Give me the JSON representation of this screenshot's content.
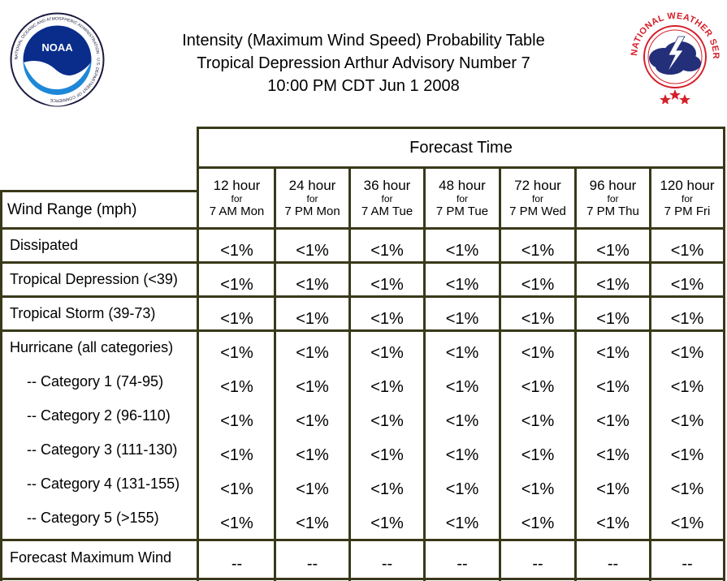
{
  "header": {
    "title_line1": "Intensity (Maximum Wind Speed) Probability Table",
    "title_line2": "Tropical Depression Arthur Advisory Number 7",
    "title_line3": "10:00 PM CDT Jun 1 2008"
  },
  "logos": {
    "noaa_text": "NOAA",
    "noaa_ring_text": "NATIONAL OCEANIC AND ATMOSPHERIC ADMINISTRATION · U.S. DEPARTMENT OF COMMERCE",
    "nws_ring_text": "NATIONAL WEATHER SERVICE"
  },
  "table": {
    "forecast_time_label": "Forecast Time",
    "wind_range_label": "Wind Range (mph)",
    "columns": [
      {
        "hours": "12 hour",
        "for": "for",
        "when": "7 AM Mon"
      },
      {
        "hours": "24 hour",
        "for": "for",
        "when": "7 PM Mon"
      },
      {
        "hours": "36 hour",
        "for": "for",
        "when": "7 AM Tue"
      },
      {
        "hours": "48 hour",
        "for": "for",
        "when": "7 PM Tue"
      },
      {
        "hours": "72 hour",
        "for": "for",
        "when": "7 PM Wed"
      },
      {
        "hours": "96 hour",
        "for": "for",
        "when": "7 PM Thu"
      },
      {
        "hours": "120 hour",
        "for": "for",
        "when": "7 PM Fri"
      }
    ],
    "rows": [
      {
        "label": "Dissipated",
        "values": [
          "<1%",
          "<1%",
          "<1%",
          "<1%",
          "<1%",
          "<1%",
          "<1%"
        ]
      },
      {
        "label": "Tropical Depression (<39)",
        "values": [
          "<1%",
          "<1%",
          "<1%",
          "<1%",
          "<1%",
          "<1%",
          "<1%"
        ]
      },
      {
        "label": "Tropical Storm (39-73)",
        "values": [
          "<1%",
          "<1%",
          "<1%",
          "<1%",
          "<1%",
          "<1%",
          "<1%"
        ]
      },
      {
        "label": "Hurricane (all categories)",
        "values": [
          "<1%",
          "<1%",
          "<1%",
          "<1%",
          "<1%",
          "<1%",
          "<1%"
        ]
      },
      {
        "label": "-- Category 1 (74-95)",
        "values": [
          "<1%",
          "<1%",
          "<1%",
          "<1%",
          "<1%",
          "<1%",
          "<1%"
        ]
      },
      {
        "label": "-- Category 2 (96-110)",
        "values": [
          "<1%",
          "<1%",
          "<1%",
          "<1%",
          "<1%",
          "<1%",
          "<1%"
        ]
      },
      {
        "label": "-- Category 3 (111-130)",
        "values": [
          "<1%",
          "<1%",
          "<1%",
          "<1%",
          "<1%",
          "<1%",
          "<1%"
        ]
      },
      {
        "label": "-- Category 4 (131-155)",
        "values": [
          "<1%",
          "<1%",
          "<1%",
          "<1%",
          "<1%",
          "<1%",
          "<1%"
        ]
      },
      {
        "label": "-- Category 5 (>155)",
        "values": [
          "<1%",
          "<1%",
          "<1%",
          "<1%",
          "<1%",
          "<1%",
          "<1%"
        ]
      },
      {
        "label": "Forecast Maximum Wind",
        "values": [
          "--",
          "--",
          "--",
          "--",
          "--",
          "--",
          "--"
        ]
      }
    ]
  }
}
